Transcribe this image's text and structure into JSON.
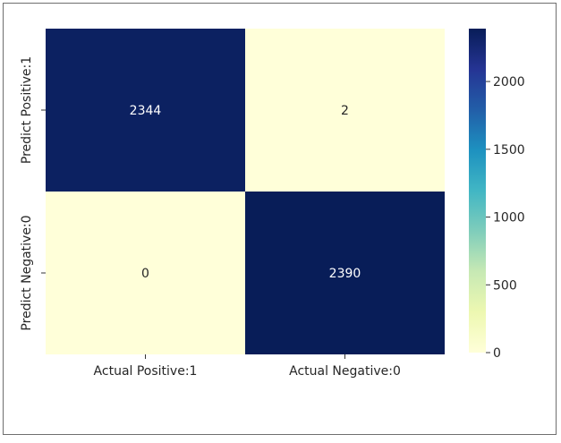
{
  "chart_data": {
    "type": "heatmap",
    "x_categories": [
      "Actual Positive:1",
      "Actual Negative:0"
    ],
    "y_categories": [
      "Predict Positive:1",
      "Predict Negative:0"
    ],
    "values": [
      [
        2344,
        2
      ],
      [
        0,
        2390
      ]
    ],
    "colorscale": "YlGnBu",
    "colorbar": {
      "min": 0,
      "max": 2390,
      "ticks": [
        0,
        500,
        1000,
        1500,
        2000
      ]
    },
    "title": "",
    "xlabel": "",
    "ylabel": ""
  },
  "colors": {
    "low": "#ffffd9",
    "high": "#081d58"
  }
}
